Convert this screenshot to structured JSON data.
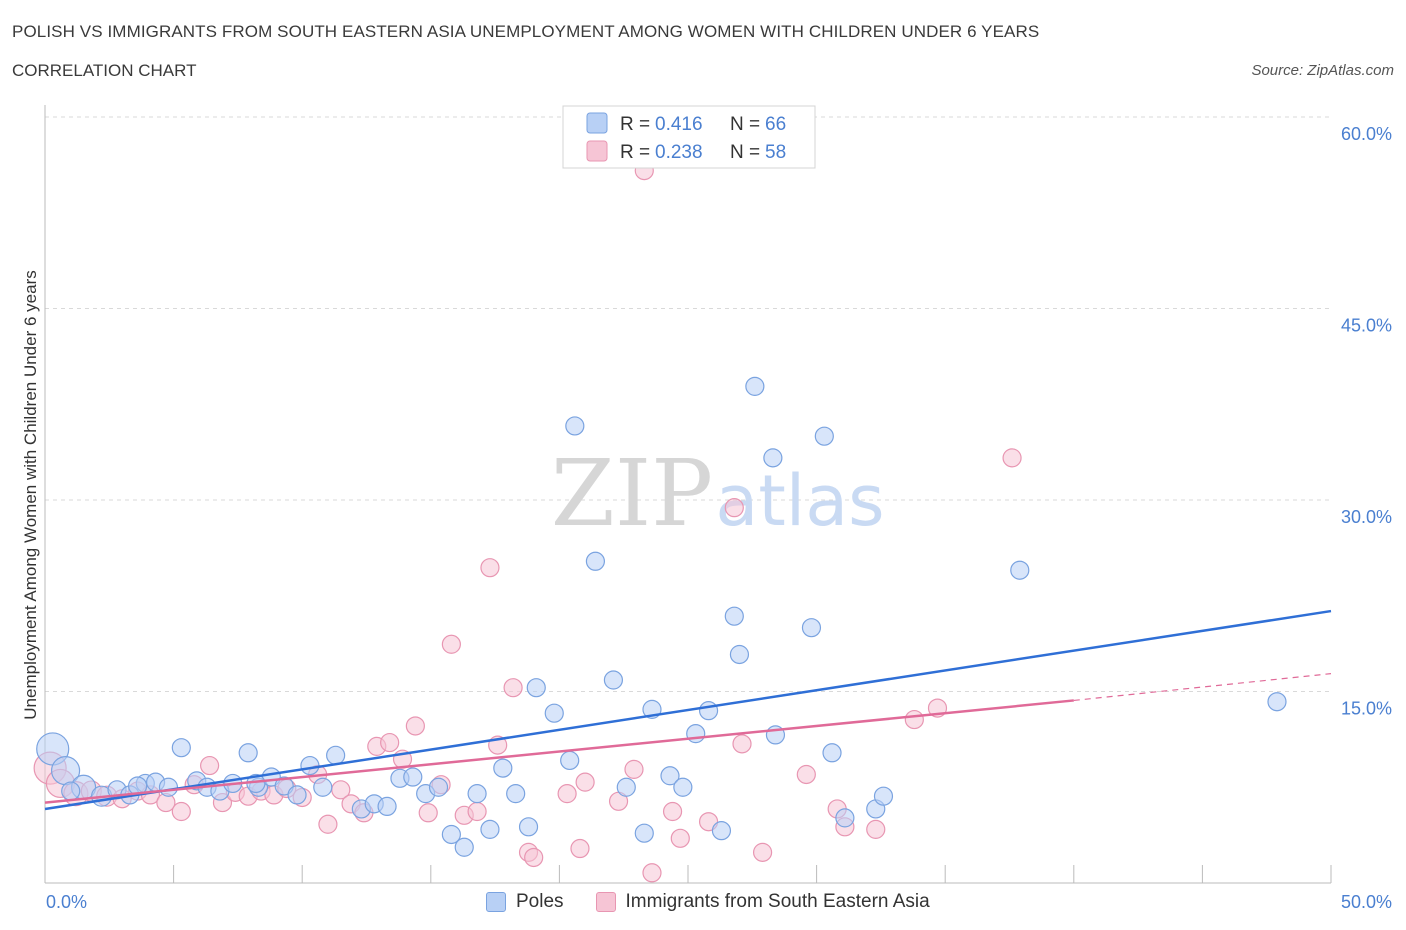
{
  "title": "POLISH VS IMMIGRANTS FROM SOUTH EASTERN ASIA UNEMPLOYMENT AMONG WOMEN WITH CHILDREN UNDER 6 YEARS",
  "subtitle": "CORRELATION CHART",
  "source": "Source: ZipAtlas.com",
  "watermark": {
    "zip": "ZIP",
    "atlas": "atlas"
  },
  "colors": {
    "poles_fill": "#b8d0f5",
    "poles_stroke": "#7aa3e0",
    "poles_line": "#2f6fd6",
    "imm_fill": "#f6c5d5",
    "imm_stroke": "#e896b2",
    "imm_line": "#e06a98",
    "tick_label": "#4a7fd0",
    "grid": "#d9d9d9"
  },
  "legend_top": {
    "rows": [
      {
        "r_label": "R = ",
        "r_value": "0.416",
        "n_label": "N = ",
        "n_value": "66"
      },
      {
        "r_label": "R = ",
        "r_value": "0.238",
        "n_label": "N = ",
        "n_value": "58"
      }
    ]
  },
  "legend_bottom": {
    "series1": "Poles",
    "series2": "Immigrants from South Eastern Asia"
  },
  "chart_data": {
    "type": "scatter",
    "title": "POLISH VS IMMIGRANTS FROM SOUTH EASTERN ASIA UNEMPLOYMENT AMONG WOMEN WITH CHILDREN UNDER 6 YEARS",
    "xlabel": "",
    "ylabel": "Unemployment Among Women with Children Under 6 years",
    "xlim": [
      0,
      50
    ],
    "ylim": [
      0,
      60
    ],
    "x_tick_labels": [
      "0.0%",
      "50.0%"
    ],
    "y_ticks": [
      15,
      30,
      45,
      60
    ],
    "y_tick_labels": [
      "15.0%",
      "30.0%",
      "45.0%",
      "60.0%"
    ],
    "grid": "horizontal dashed",
    "legend_placement": "top-center and bottom",
    "series": [
      {
        "name": "Poles",
        "r": 0.416,
        "n": 66,
        "trend": {
          "x": [
            0,
            50
          ],
          "y": [
            5.8,
            21.3
          ]
        },
        "points": [
          {
            "x": 0.3,
            "y": 10.5,
            "s": 16
          },
          {
            "x": 0.8,
            "y": 8.8,
            "s": 14
          },
          {
            "x": 1.5,
            "y": 7.5,
            "s": 12
          },
          {
            "x": 2.2,
            "y": 6.8,
            "s": 10
          },
          {
            "x": 1.0,
            "y": 7.2,
            "s": 9
          },
          {
            "x": 2.8,
            "y": 7.3,
            "s": 9
          },
          {
            "x": 3.3,
            "y": 6.9,
            "s": 9
          },
          {
            "x": 3.9,
            "y": 7.8,
            "s": 9
          },
          {
            "x": 4.3,
            "y": 7.9,
            "s": 9
          },
          {
            "x": 4.8,
            "y": 7.5,
            "s": 9
          },
          {
            "x": 5.3,
            "y": 10.6,
            "s": 9
          },
          {
            "x": 5.9,
            "y": 8.0,
            "s": 9
          },
          {
            "x": 6.3,
            "y": 7.5,
            "s": 9
          },
          {
            "x": 6.8,
            "y": 7.2,
            "s": 9
          },
          {
            "x": 7.3,
            "y": 7.8,
            "s": 9
          },
          {
            "x": 7.9,
            "y": 10.2,
            "s": 9
          },
          {
            "x": 8.3,
            "y": 7.5,
            "s": 9
          },
          {
            "x": 8.8,
            "y": 8.3,
            "s": 9
          },
          {
            "x": 9.3,
            "y": 7.6,
            "s": 9
          },
          {
            "x": 9.8,
            "y": 6.9,
            "s": 9
          },
          {
            "x": 10.3,
            "y": 9.2,
            "s": 9
          },
          {
            "x": 10.8,
            "y": 7.5,
            "s": 9
          },
          {
            "x": 11.3,
            "y": 10.0,
            "s": 9
          },
          {
            "x": 12.3,
            "y": 5.8,
            "s": 9
          },
          {
            "x": 12.8,
            "y": 6.2,
            "s": 9
          },
          {
            "x": 13.3,
            "y": 6.0,
            "s": 9
          },
          {
            "x": 13.8,
            "y": 8.2,
            "s": 9
          },
          {
            "x": 14.3,
            "y": 8.3,
            "s": 9
          },
          {
            "x": 14.8,
            "y": 7.0,
            "s": 9
          },
          {
            "x": 15.3,
            "y": 7.5,
            "s": 9
          },
          {
            "x": 15.8,
            "y": 3.8,
            "s": 9
          },
          {
            "x": 16.3,
            "y": 2.8,
            "s": 9
          },
          {
            "x": 16.8,
            "y": 7.0,
            "s": 9
          },
          {
            "x": 17.3,
            "y": 4.2,
            "s": 9
          },
          {
            "x": 17.8,
            "y": 9.0,
            "s": 9
          },
          {
            "x": 18.3,
            "y": 7.0,
            "s": 9
          },
          {
            "x": 18.8,
            "y": 4.4,
            "s": 9
          },
          {
            "x": 19.1,
            "y": 15.3,
            "s": 9
          },
          {
            "x": 19.8,
            "y": 13.3,
            "s": 9
          },
          {
            "x": 20.4,
            "y": 9.6,
            "s": 9
          },
          {
            "x": 20.6,
            "y": 35.8,
            "s": 9
          },
          {
            "x": 21.4,
            "y": 25.2,
            "s": 9
          },
          {
            "x": 22.1,
            "y": 15.9,
            "s": 9
          },
          {
            "x": 22.6,
            "y": 7.5,
            "s": 9
          },
          {
            "x": 23.3,
            "y": 3.9,
            "s": 9
          },
          {
            "x": 23.6,
            "y": 13.6,
            "s": 9
          },
          {
            "x": 24.3,
            "y": 8.4,
            "s": 9
          },
          {
            "x": 24.8,
            "y": 7.5,
            "s": 9
          },
          {
            "x": 25.3,
            "y": 11.7,
            "s": 9
          },
          {
            "x": 25.8,
            "y": 13.5,
            "s": 9
          },
          {
            "x": 26.3,
            "y": 4.1,
            "s": 9
          },
          {
            "x": 26.8,
            "y": 20.9,
            "s": 9
          },
          {
            "x": 27.0,
            "y": 17.9,
            "s": 9
          },
          {
            "x": 27.6,
            "y": 38.9,
            "s": 9
          },
          {
            "x": 28.3,
            "y": 33.3,
            "s": 9
          },
          {
            "x": 28.4,
            "y": 11.6,
            "s": 9
          },
          {
            "x": 29.8,
            "y": 20.0,
            "s": 9
          },
          {
            "x": 30.3,
            "y": 35.0,
            "s": 9
          },
          {
            "x": 30.6,
            "y": 10.2,
            "s": 9
          },
          {
            "x": 31.1,
            "y": 5.1,
            "s": 9
          },
          {
            "x": 32.3,
            "y": 5.8,
            "s": 9
          },
          {
            "x": 32.6,
            "y": 6.8,
            "s": 9
          },
          {
            "x": 37.9,
            "y": 24.5,
            "s": 9
          },
          {
            "x": 47.9,
            "y": 14.2,
            "s": 9
          },
          {
            "x": 8.2,
            "y": 7.8,
            "s": 9
          },
          {
            "x": 3.6,
            "y": 7.6,
            "s": 9
          }
        ]
      },
      {
        "name": "Immigrants from South Eastern Asia",
        "r": 0.238,
        "n": 58,
        "trend": {
          "x": [
            0,
            40
          ],
          "y": [
            6.3,
            14.3
          ]
        },
        "trend_extension": {
          "x": [
            40,
            50
          ],
          "y": [
            14.3,
            16.4
          ]
        },
        "points": [
          {
            "x": 0.2,
            "y": 9.0,
            "s": 16
          },
          {
            "x": 0.6,
            "y": 7.8,
            "s": 14
          },
          {
            "x": 1.2,
            "y": 7.0,
            "s": 12
          },
          {
            "x": 1.8,
            "y": 7.2,
            "s": 10
          },
          {
            "x": 2.4,
            "y": 6.8,
            "s": 10
          },
          {
            "x": 3.0,
            "y": 6.6,
            "s": 9
          },
          {
            "x": 3.6,
            "y": 7.2,
            "s": 9
          },
          {
            "x": 4.1,
            "y": 6.9,
            "s": 9
          },
          {
            "x": 4.7,
            "y": 6.3,
            "s": 9
          },
          {
            "x": 5.3,
            "y": 5.6,
            "s": 9
          },
          {
            "x": 5.8,
            "y": 7.7,
            "s": 9
          },
          {
            "x": 6.4,
            "y": 9.2,
            "s": 9
          },
          {
            "x": 6.9,
            "y": 6.3,
            "s": 9
          },
          {
            "x": 7.4,
            "y": 7.1,
            "s": 9
          },
          {
            "x": 7.9,
            "y": 6.8,
            "s": 9
          },
          {
            "x": 8.4,
            "y": 7.2,
            "s": 9
          },
          {
            "x": 8.9,
            "y": 6.9,
            "s": 9
          },
          {
            "x": 9.4,
            "y": 7.4,
            "s": 9
          },
          {
            "x": 10.0,
            "y": 6.7,
            "s": 9
          },
          {
            "x": 10.6,
            "y": 8.5,
            "s": 9
          },
          {
            "x": 11.0,
            "y": 4.6,
            "s": 9
          },
          {
            "x": 11.5,
            "y": 7.3,
            "s": 9
          },
          {
            "x": 11.9,
            "y": 6.2,
            "s": 9
          },
          {
            "x": 12.4,
            "y": 5.5,
            "s": 9
          },
          {
            "x": 12.9,
            "y": 10.7,
            "s": 9
          },
          {
            "x": 13.4,
            "y": 11.0,
            "s": 9
          },
          {
            "x": 13.9,
            "y": 9.7,
            "s": 9
          },
          {
            "x": 14.4,
            "y": 12.3,
            "s": 9
          },
          {
            "x": 14.9,
            "y": 5.5,
            "s": 9
          },
          {
            "x": 15.4,
            "y": 7.7,
            "s": 9
          },
          {
            "x": 15.8,
            "y": 18.7,
            "s": 9
          },
          {
            "x": 16.3,
            "y": 5.3,
            "s": 9
          },
          {
            "x": 16.8,
            "y": 5.6,
            "s": 9
          },
          {
            "x": 17.3,
            "y": 24.7,
            "s": 9
          },
          {
            "x": 17.6,
            "y": 10.8,
            "s": 9
          },
          {
            "x": 18.2,
            "y": 15.3,
            "s": 9
          },
          {
            "x": 18.8,
            "y": 2.4,
            "s": 9
          },
          {
            "x": 19.0,
            "y": 2.0,
            "s": 9
          },
          {
            "x": 20.3,
            "y": 7.0,
            "s": 9
          },
          {
            "x": 20.8,
            "y": 2.7,
            "s": 9
          },
          {
            "x": 21.0,
            "y": 7.9,
            "s": 9
          },
          {
            "x": 22.3,
            "y": 6.4,
            "s": 9
          },
          {
            "x": 22.9,
            "y": 8.9,
            "s": 9
          },
          {
            "x": 23.3,
            "y": 55.8,
            "s": 9
          },
          {
            "x": 23.6,
            "y": 0.8,
            "s": 9
          },
          {
            "x": 24.4,
            "y": 5.6,
            "s": 9
          },
          {
            "x": 24.7,
            "y": 3.5,
            "s": 9
          },
          {
            "x": 25.8,
            "y": 4.8,
            "s": 9
          },
          {
            "x": 26.8,
            "y": 29.4,
            "s": 9
          },
          {
            "x": 27.1,
            "y": 10.9,
            "s": 9
          },
          {
            "x": 27.9,
            "y": 2.4,
            "s": 9
          },
          {
            "x": 29.6,
            "y": 8.5,
            "s": 9
          },
          {
            "x": 30.8,
            "y": 5.8,
            "s": 9
          },
          {
            "x": 31.1,
            "y": 4.4,
            "s": 9
          },
          {
            "x": 32.3,
            "y": 4.2,
            "s": 9
          },
          {
            "x": 33.8,
            "y": 12.8,
            "s": 9
          },
          {
            "x": 34.7,
            "y": 13.7,
            "s": 9
          },
          {
            "x": 37.6,
            "y": 33.3,
            "s": 9
          }
        ]
      }
    ]
  }
}
